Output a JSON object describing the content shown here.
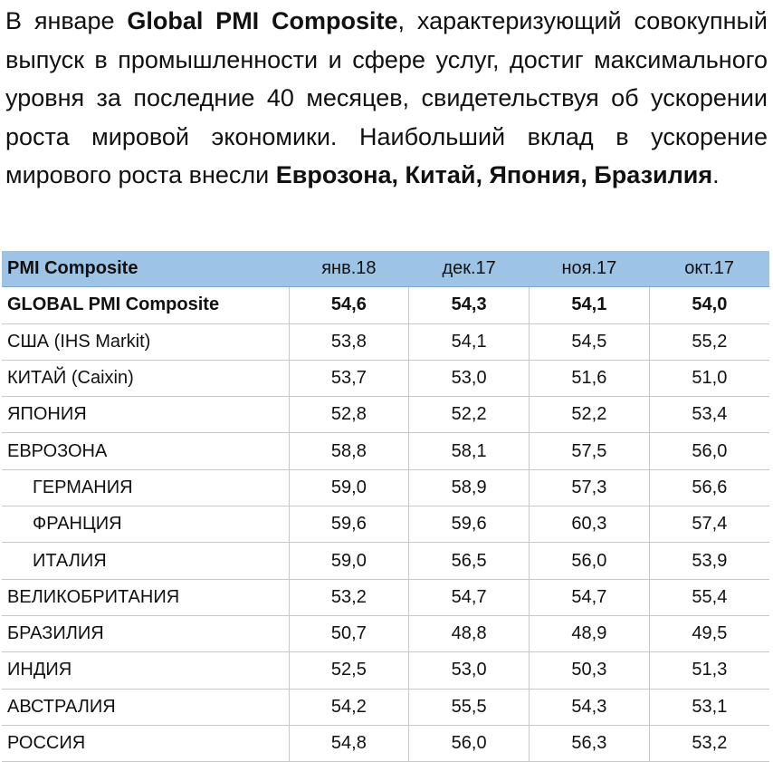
{
  "intro": {
    "p1": "В январе ",
    "b1": "Global PMI Composite",
    "p2": ", характеризующий совокупный выпуск в промышленности и сфере услуг, достиг максимального уровня за последние 40 месяцев, свидетельствуя об ускорении роста мировой экономики. Наибольший вклад в ускорение мирового роста внесли ",
    "b2": "Еврозона, Китай, Япония, Бразилия",
    "p3": "."
  },
  "table": {
    "headers": [
      "PMI Composite",
      "янв.18",
      "дек.17",
      "ноя.17",
      "окт.17"
    ],
    "rows": [
      {
        "name": "GLOBAL PMI Composite",
        "values": [
          "54,6",
          "54,3",
          "54,1",
          "54,0"
        ]
      },
      {
        "name": "США (IHS Markit)",
        "values": [
          "53,8",
          "54,1",
          "54,5",
          "55,2"
        ]
      },
      {
        "name": "КИТАЙ (Caixin)",
        "values": [
          "53,7",
          "53,0",
          "51,6",
          "51,0"
        ]
      },
      {
        "name": "ЯПОНИЯ",
        "values": [
          "52,8",
          "52,2",
          "52,2",
          "53,4"
        ]
      },
      {
        "name": "ЕВРОЗОНА",
        "values": [
          "58,8",
          "58,1",
          "57,5",
          "56,0"
        ]
      },
      {
        "name": "ГЕРМАНИЯ",
        "values": [
          "59,0",
          "58,9",
          "57,3",
          "56,6"
        ]
      },
      {
        "name": "ФРАНЦИЯ",
        "values": [
          "59,6",
          "59,6",
          "60,3",
          "57,4"
        ]
      },
      {
        "name": "ИТАЛИЯ",
        "values": [
          "59,0",
          "56,5",
          "56,0",
          "53,9"
        ]
      },
      {
        "name": "ВЕЛИКОБРИТАНИЯ",
        "values": [
          "53,2",
          "54,7",
          "54,7",
          "55,4"
        ]
      },
      {
        "name": "БРАЗИЛИЯ",
        "values": [
          "50,7",
          "48,8",
          "48,9",
          "49,5"
        ]
      },
      {
        "name": "ИНДИЯ",
        "values": [
          "52,5",
          "53,0",
          "50,3",
          "51,3"
        ]
      },
      {
        "name": "АВСТРАЛИЯ",
        "values": [
          "54,2",
          "55,5",
          "54,3",
          "53,1"
        ]
      },
      {
        "name": "РОССИЯ",
        "values": [
          "54,8",
          "56,0",
          "56,3",
          "53,2"
        ]
      }
    ]
  }
}
